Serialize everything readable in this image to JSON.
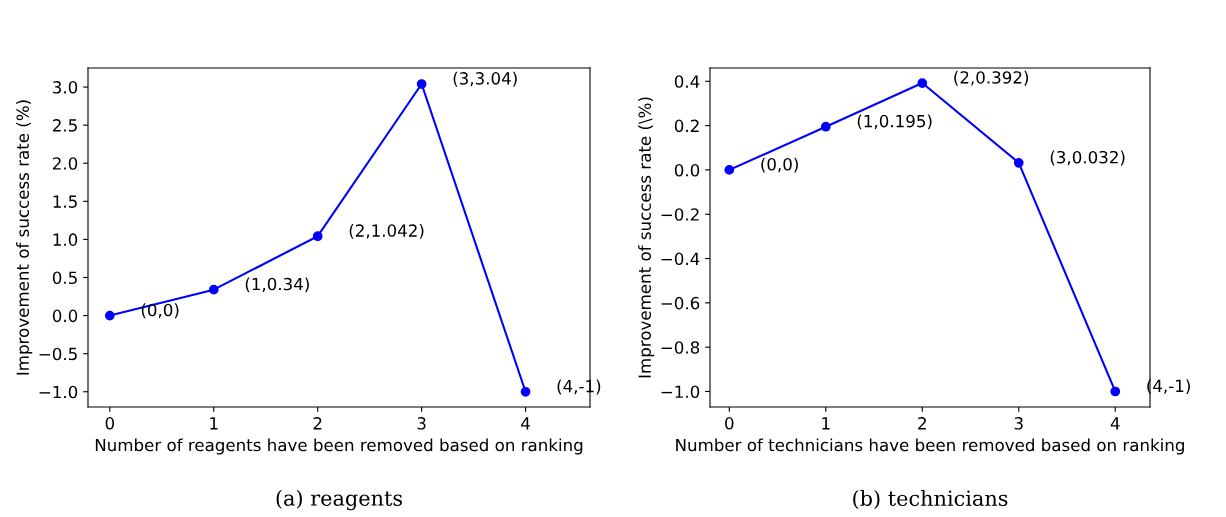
{
  "chart_data": [
    {
      "type": "line",
      "xlabel": "Number of reagents have been removed based on ranking",
      "ylabel": "Improvement of success rate (%)",
      "x": [
        0,
        1,
        2,
        3,
        4
      ],
      "series": [
        {
          "color": "#0000ff",
          "values": [
            0,
            0.34,
            1.042,
            3.04,
            -1
          ]
        }
      ],
      "marker": "circle",
      "line_style": "solid",
      "xlim": [
        -0.21,
        4.62
      ],
      "xticks": [
        0,
        1,
        2,
        3,
        4
      ],
      "ylim": [
        -1.2,
        3.25
      ],
      "yticks": [
        {
          "value": -1.0,
          "label": "−1.0"
        },
        {
          "value": -0.5,
          "label": "−0.5"
        },
        {
          "value": 0.0,
          "label": "0.0"
        },
        {
          "value": 0.5,
          "label": "0.5"
        },
        {
          "value": 1.0,
          "label": "1.0"
        },
        {
          "value": 1.5,
          "label": "1.5"
        },
        {
          "value": 2.0,
          "label": "2.0"
        },
        {
          "value": 2.5,
          "label": "2.5"
        },
        {
          "value": 3.0,
          "label": "3.0"
        }
      ],
      "annotations": [
        {
          "text": "(0,0)",
          "x": 0,
          "y": 0
        },
        {
          "text": "(1,0.34)",
          "x": 1,
          "y": 0.34
        },
        {
          "text": "(2,1.042)",
          "x": 2,
          "y": 1.042
        },
        {
          "text": "(3,3.04)",
          "x": 3,
          "y": 3.04
        },
        {
          "text": "(4,-1)",
          "x": 4,
          "y": -1
        },
        "(a) reagents"
      ]
    },
    {
      "type": "line",
      "xlabel": "Number of technicians have been removed based on ranking",
      "ylabel": "Improvement of success rate (\\%)",
      "x": [
        0,
        1,
        2,
        3,
        4
      ],
      "series": [
        {
          "color": "#0000ff",
          "values": [
            0,
            0.195,
            0.392,
            0.032,
            -1
          ]
        }
      ],
      "marker": "circle",
      "line_style": "solid",
      "xlim": [
        -0.2,
        4.36
      ],
      "xticks": [
        0,
        1,
        2,
        3,
        4
      ],
      "ylim": [
        -1.07,
        0.46
      ],
      "yticks": [
        {
          "value": -1.0,
          "label": "−1.0"
        },
        {
          "value": -0.8,
          "label": "−0.8"
        },
        {
          "value": -0.6,
          "label": "−0.6"
        },
        {
          "value": -0.4,
          "label": "−0.4"
        },
        {
          "value": -0.2,
          "label": "−0.2"
        },
        {
          "value": 0.0,
          "label": "0.0"
        },
        {
          "value": 0.2,
          "label": "0.2"
        },
        {
          "value": 0.4,
          "label": "0.4"
        }
      ],
      "annotations": [
        {
          "text": "(0,0)",
          "x": 0,
          "y": 0
        },
        {
          "text": "(1,0.195)",
          "x": 1,
          "y": 0.195
        },
        {
          "text": "(2,0.392)",
          "x": 2,
          "y": 0.392
        },
        {
          "text": "(3,0.032)",
          "x": 3,
          "y": 0.032
        },
        {
          "text": "(4,-1)",
          "x": 4,
          "y": -1
        },
        "(b) technicians"
      ]
    }
  ]
}
